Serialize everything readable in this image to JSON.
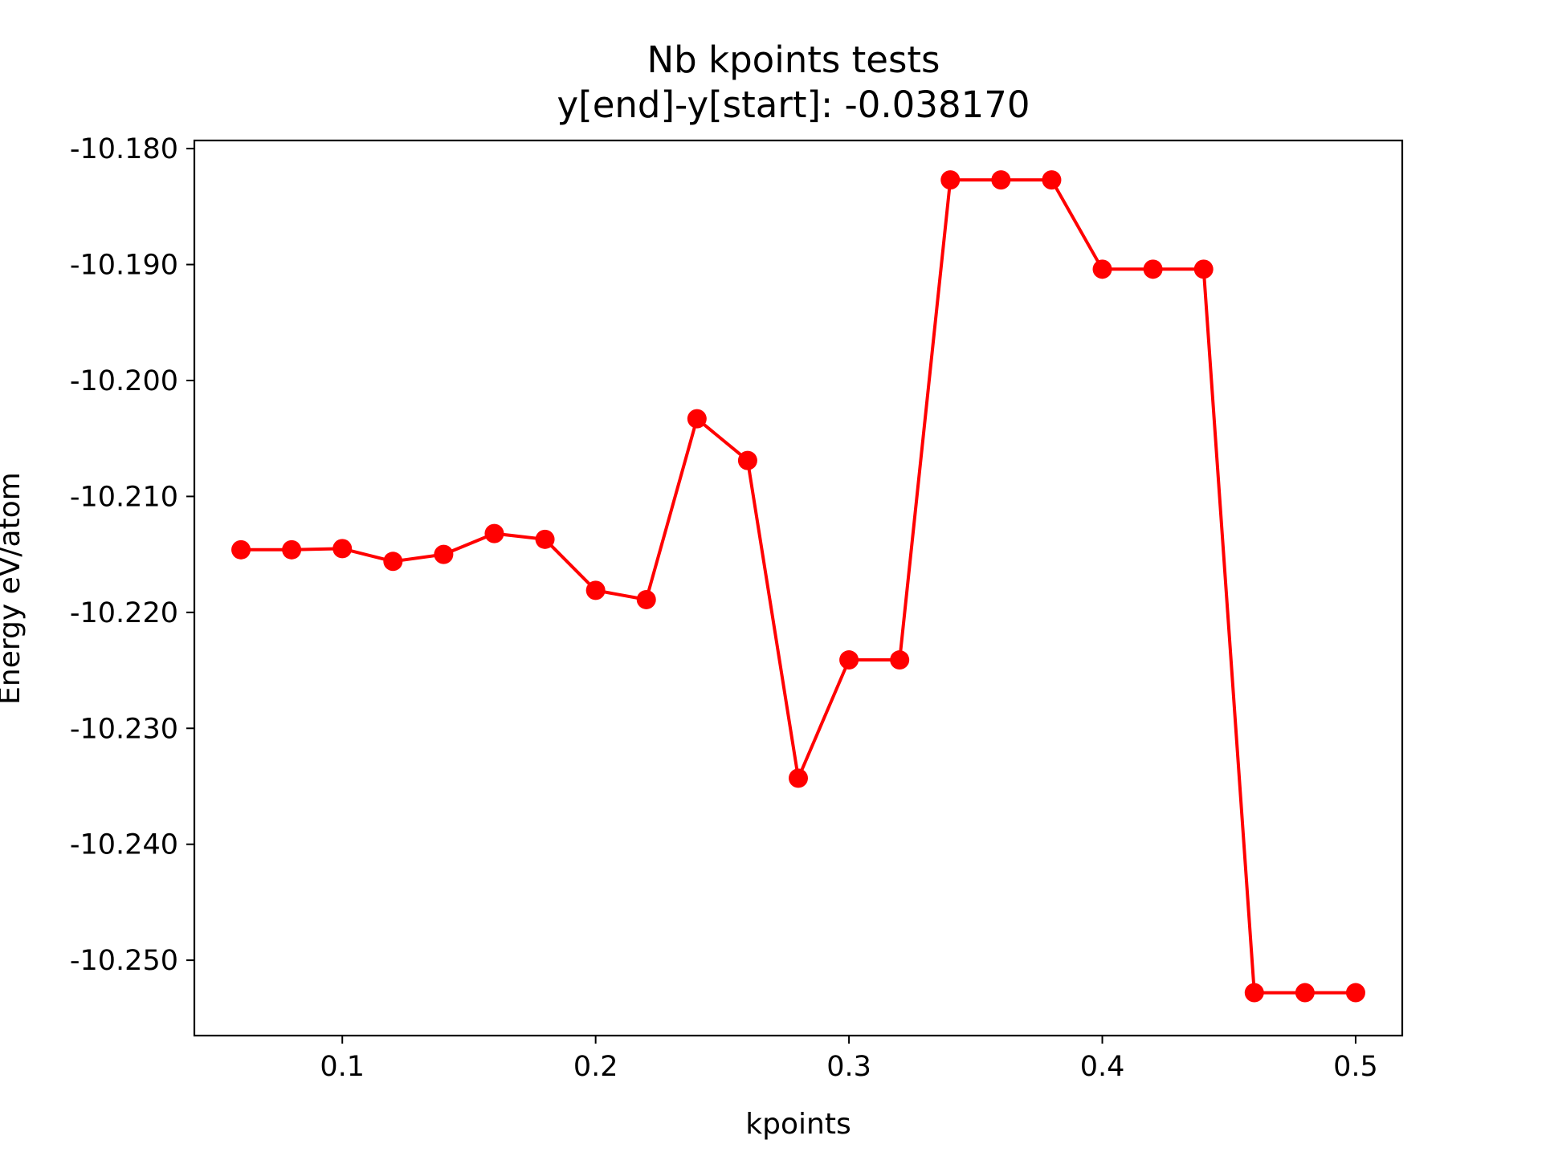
{
  "chart_data": {
    "type": "line",
    "title": "Nb kpoints tests",
    "subtitle": "y[end]-y[start]:  -0.038170",
    "xlabel": "kpoints",
    "ylabel": "Energy eV/atom",
    "xlim": [
      0.0416,
      0.5184
    ],
    "ylim": [
      -10.2565,
      -10.1793
    ],
    "x_ticks": [
      0.1,
      0.2,
      0.3,
      0.4,
      0.5
    ],
    "x_tick_labels": [
      "0.1",
      "0.2",
      "0.3",
      "0.4",
      "0.5"
    ],
    "y_ticks": [
      -10.18,
      -10.19,
      -10.2,
      -10.21,
      -10.22,
      -10.23,
      -10.24,
      -10.25
    ],
    "y_tick_labels": [
      "-10.180",
      "-10.190",
      "-10.200",
      "-10.210",
      "-10.220",
      "-10.230",
      "-10.240",
      "-10.250"
    ],
    "grid": false,
    "legend": "none",
    "series": [
      {
        "color": "#ff0000",
        "marker": "circle",
        "x": [
          0.06,
          0.08,
          0.1,
          0.12,
          0.14,
          0.16,
          0.18,
          0.2,
          0.22,
          0.24,
          0.26,
          0.28,
          0.3,
          0.32,
          0.34,
          0.36,
          0.38,
          0.4,
          0.42,
          0.44,
          0.46,
          0.48,
          0.5
        ],
        "y": [
          -10.2146,
          -10.2146,
          -10.2145,
          -10.2156,
          -10.215,
          -10.2132,
          -10.2137,
          -10.2181,
          -10.2189,
          -10.2033,
          -10.2069,
          -10.2343,
          -10.2241,
          -10.2241,
          -10.1827,
          -10.1827,
          -10.1827,
          -10.1904,
          -10.1904,
          -10.1904,
          -10.2528,
          -10.2528,
          -10.2528
        ]
      }
    ]
  }
}
